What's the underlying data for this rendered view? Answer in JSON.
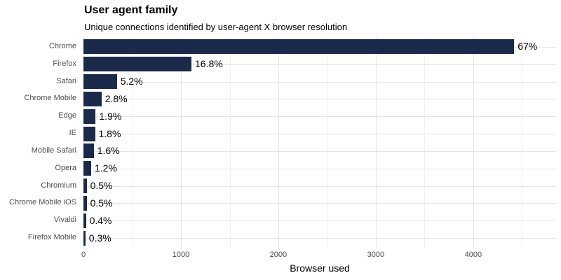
{
  "chart_data": {
    "type": "bar",
    "orientation": "horizontal",
    "title": "User agent family",
    "subtitle": "Unique connections identified by user-agent X browser resolution",
    "xlabel": "Browser used",
    "ylabel": "",
    "categories": [
      "Chrome",
      "Firefox",
      "Safari",
      "Chrome Mobile",
      "Edge",
      "IE",
      "Mobile Safari",
      "Opera",
      "Chromium",
      "Chrome Mobile iOS",
      "Vivaldi",
      "Firefox Mobile"
    ],
    "values": [
      4420,
      1108,
      343,
      185,
      125,
      119,
      106,
      79,
      33,
      33,
      26,
      20
    ],
    "percent_labels": [
      "67%",
      "16.8%",
      "5.2%",
      "2.8%",
      "1.9%",
      "1.8%",
      "1.6%",
      "1.2%",
      "0.5%",
      "0.5%",
      "0.4%",
      "0.3%"
    ],
    "xlim": [
      0,
      4850
    ],
    "x_major_ticks": [
      0,
      1000,
      2000,
      3000,
      4000
    ],
    "x_major_tick_labels": [
      "0",
      "1000",
      "2000",
      "3000",
      "4000"
    ],
    "x_minor_ticks": [
      500,
      1500,
      2500,
      3500,
      4500
    ],
    "grid": true,
    "legend": "none"
  },
  "colors": {
    "bar": "#1b2a4a",
    "grid_major": "#e4e4e4",
    "grid_minor": "#f0f0f0",
    "axis_text": "#4d4d4d",
    "text": "#000000",
    "background": "#ffffff"
  }
}
